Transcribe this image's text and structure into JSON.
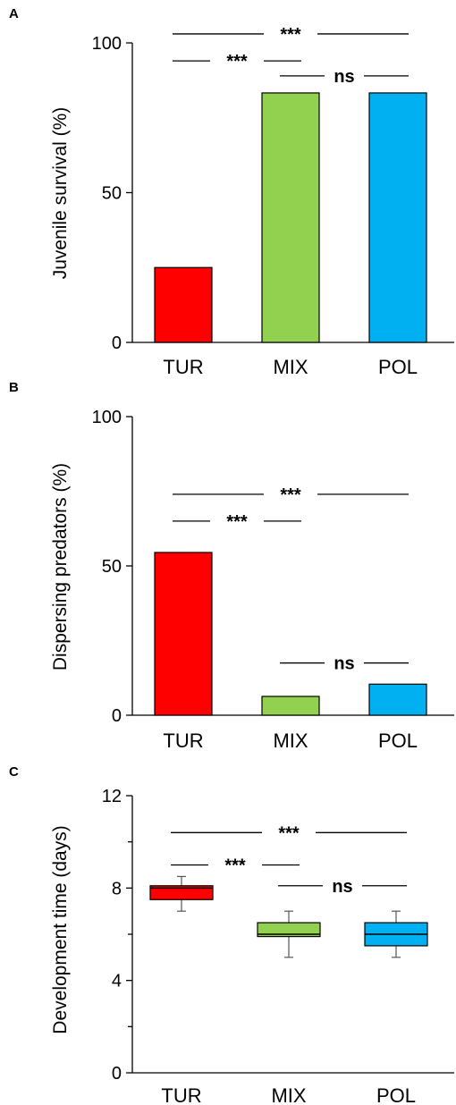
{
  "chart_data": [
    {
      "type": "bar",
      "panel": "A",
      "ylabel": "Juvenile survival (%)",
      "ylim": [
        0,
        100
      ],
      "yticks": [
        0,
        50,
        100
      ],
      "categories": [
        "TUR",
        "MIX",
        "POL"
      ],
      "values": [
        25,
        83.3,
        83.3
      ],
      "colors": [
        "#ff0000",
        "#92d050",
        "#00b0f0"
      ],
      "significance": [
        {
          "from": 0,
          "to": 2,
          "label": "***",
          "y": 103
        },
        {
          "from": 0,
          "to": 1,
          "label": "***",
          "y": 94
        },
        {
          "from": 1,
          "to": 2,
          "label": "ns",
          "y": 89
        }
      ]
    },
    {
      "type": "bar",
      "panel": "B",
      "ylabel": "Dispersing predators (%)",
      "ylim": [
        0,
        100
      ],
      "yticks": [
        0,
        50,
        100
      ],
      "categories": [
        "TUR",
        "MIX",
        "POL"
      ],
      "values": [
        54.5,
        6.3,
        10.4
      ],
      "colors": [
        "#ff0000",
        "#92d050",
        "#00b0f0"
      ],
      "significance": [
        {
          "from": 0,
          "to": 2,
          "label": "***",
          "y": 74
        },
        {
          "from": 0,
          "to": 1,
          "label": "***",
          "y": 65
        },
        {
          "from": 1,
          "to": 2,
          "label": "ns",
          "y": 17.5
        }
      ]
    },
    {
      "type": "box",
      "panel": "C",
      "ylabel": "Development time (days)",
      "ylim": [
        0,
        12
      ],
      "yticks": [
        0,
        4,
        8,
        12
      ],
      "minor_yticks": [
        2,
        6,
        10
      ],
      "categories": [
        "TUR",
        "MIX",
        "POL"
      ],
      "boxes": [
        {
          "min": 7.0,
          "q1": 7.5,
          "median": 8.0,
          "q3": 8.1,
          "max": 8.5
        },
        {
          "min": 5.0,
          "q1": 5.9,
          "median": 6.0,
          "q3": 6.5,
          "max": 7.0
        },
        {
          "min": 5.0,
          "q1": 5.5,
          "median": 6.0,
          "q3": 6.5,
          "max": 7.0
        }
      ],
      "colors": [
        "#ff0000",
        "#92d050",
        "#00b0f0"
      ],
      "significance": [
        {
          "from": 0,
          "to": 2,
          "label": "***",
          "y": 10.4
        },
        {
          "from": 0,
          "to": 1,
          "label": "***",
          "y": 9.0
        },
        {
          "from": 1,
          "to": 2,
          "label": "ns",
          "y": 8.1
        }
      ]
    }
  ]
}
